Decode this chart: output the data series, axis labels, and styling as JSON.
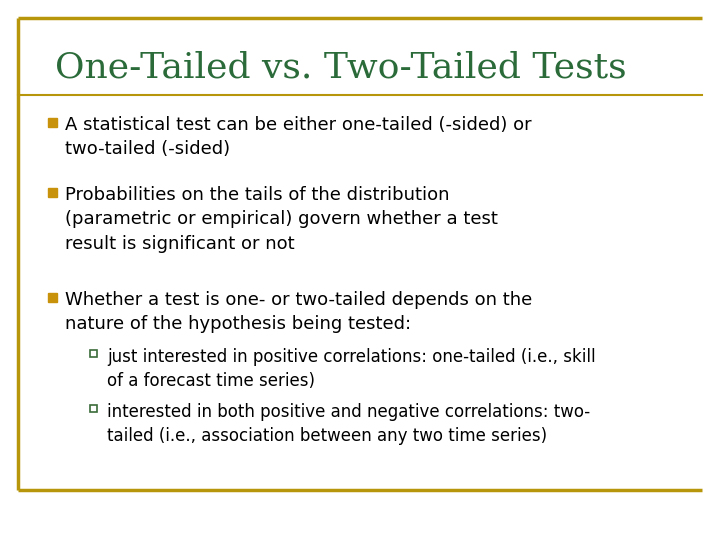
{
  "title": "One-Tailed vs. Two-Tailed Tests",
  "title_color": "#2B6B3A",
  "title_fontsize": 26,
  "background_color": "#FFFFFF",
  "border_color": "#B8960C",
  "bullet_color": "#C8920A",
  "sub_bullet_color": "#3A6B3A",
  "text_color": "#000000",
  "bullets": [
    "A statistical test can be either one-tailed (-sided) or\ntwo-tailed (-sided)",
    "Probabilities on the tails of the distribution\n(parametric or empirical) govern whether a test\nresult is significant or not",
    "Whether a test is one- or two-tailed depends on the\nnature of the hypothesis being tested:"
  ],
  "sub_bullets": [
    "just interested in positive correlations: one-tailed (i.e., skill\nof a forecast time series)",
    "interested in both positive and negative correlations: two-\ntailed (i.e., association between any two time series)"
  ],
  "bullet_fontsize": 13.0,
  "sub_bullet_fontsize": 12.0
}
